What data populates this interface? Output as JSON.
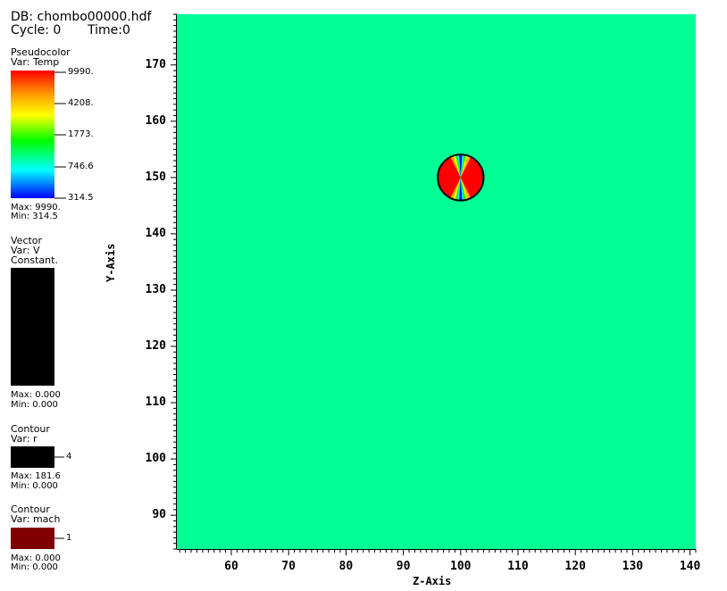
{
  "header": {
    "db": "DB: chombo00000.hdf",
    "cycle": "Cycle: 0",
    "time": "Time:0"
  },
  "legends": {
    "pseudocolor": {
      "title": "Pseudocolor",
      "var": "Var: Temp",
      "ticks": [
        "9990.",
        "4208.",
        "1773.",
        "746.6",
        "314.5"
      ],
      "max": "Max:  9990.",
      "min": "Min:  314.5",
      "colors": [
        "#ff0000",
        "#ffa500",
        "#ffff00",
        "#00ff00",
        "#00ffff",
        "#0000ff"
      ]
    },
    "vector": {
      "title": "Vector",
      "var": "Var: V",
      "mode": "Constant.",
      "max": "Max:  0.000",
      "min": "Min:  0.000",
      "color": "#000000"
    },
    "contour_r": {
      "title": "Contour",
      "var": "Var: r",
      "level": "4",
      "max": "Max:  181.6",
      "min": "Min:  0.000",
      "color": "#000000"
    },
    "contour_mach": {
      "title": "Contour",
      "var": "Var: mach",
      "level": "1",
      "max": "Max:  0.000",
      "min": "Min:  0.000",
      "color": "#7f0000"
    }
  },
  "chart_data": {
    "type": "heatmap",
    "xlabel": "Z-Axis",
    "ylabel": "Y-Axis",
    "xlim": [
      50.5,
      141
    ],
    "ylim": [
      84,
      179
    ],
    "xticks": [
      60,
      70,
      80,
      90,
      100,
      110,
      120,
      130,
      140
    ],
    "yticks": [
      90,
      100,
      110,
      120,
      130,
      140,
      150,
      160,
      170
    ],
    "background_value": 1300,
    "background_color": "#00ff95",
    "feature": {
      "shape": "circle",
      "center": [
        100,
        150
      ],
      "radius": 4,
      "colors": [
        "#ff0000",
        "#ffa500",
        "#ffff00",
        "#00ff00",
        "#00ffff",
        "#0000ff"
      ]
    },
    "grid": false
  }
}
